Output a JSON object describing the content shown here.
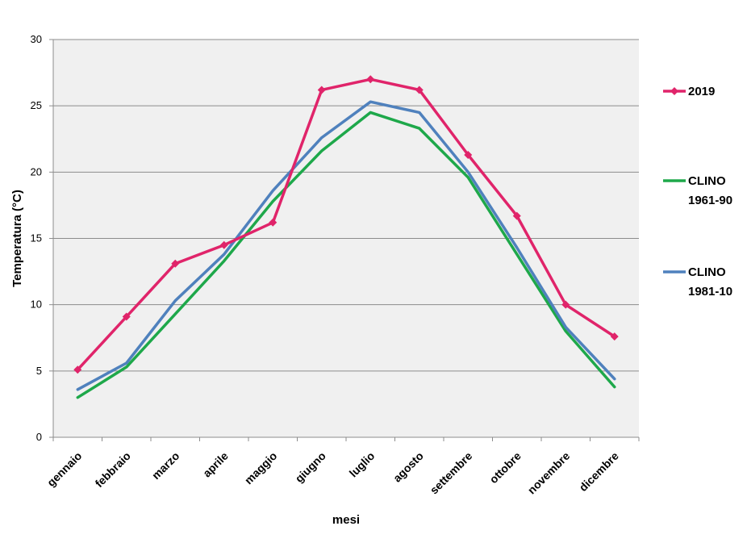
{
  "chart_data": {
    "type": "line",
    "xlabel": "mesi",
    "ylabel": "Temperatura (°C)",
    "ylim": [
      0,
      30
    ],
    "yticks": [
      0,
      5,
      10,
      15,
      20,
      25,
      30
    ],
    "grid": "horizontal",
    "legend_position": "right",
    "categories": [
      "gennaio",
      "febbraio",
      "marzo",
      "aprile",
      "maggio",
      "giugno",
      "luglio",
      "agosto",
      "settembre",
      "ottobre",
      "novembre",
      "dicembre"
    ],
    "series": [
      {
        "name": "2019",
        "legend_lines": [
          "2019"
        ],
        "color": "#e0246a",
        "marker": "diamond",
        "values": [
          5.1,
          9.1,
          13.1,
          14.5,
          16.2,
          26.2,
          27.0,
          26.2,
          21.3,
          16.7,
          10.0,
          7.6
        ]
      },
      {
        "name": "CLINO 1961-90",
        "legend_lines": [
          "CLINO",
          "1961-90"
        ],
        "color": "#1ea84a",
        "marker": "none",
        "values": [
          3.0,
          5.3,
          9.3,
          13.3,
          17.8,
          21.6,
          24.5,
          23.3,
          19.6,
          13.8,
          8.0,
          3.8
        ]
      },
      {
        "name": "CLINO 1981-10",
        "legend_lines": [
          "CLINO",
          "1981-10"
        ],
        "color": "#4f81bd",
        "marker": "none",
        "values": [
          3.6,
          5.6,
          10.3,
          13.8,
          18.6,
          22.6,
          25.3,
          24.5,
          20.0,
          14.3,
          8.3,
          4.4
        ]
      }
    ]
  }
}
